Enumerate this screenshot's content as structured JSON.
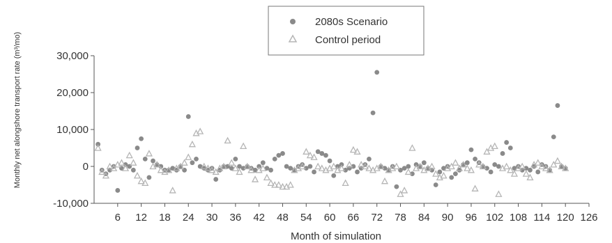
{
  "chart_data": {
    "type": "scatter",
    "title": "",
    "xlabel": "Month of simulation",
    "ylabel": "Monthly net alongshore transport rate (m³/mo)",
    "xlim": [
      0,
      126
    ],
    "ylim": [
      -10000,
      30000
    ],
    "x_ticks": [
      6,
      12,
      18,
      24,
      30,
      36,
      42,
      48,
      54,
      60,
      66,
      72,
      78,
      84,
      90,
      96,
      102,
      108,
      114,
      120,
      126
    ],
    "x_tick_labels": [
      "6",
      "12",
      "18",
      "24",
      "30",
      "36",
      "42",
      "48",
      "54",
      "60",
      "66",
      "72",
      "78",
      "84",
      "90",
      "96",
      "102",
      "108",
      "114",
      "120",
      "126"
    ],
    "y_ticks": [
      -10000,
      0,
      10000,
      20000,
      30000
    ],
    "y_tick_labels": [
      "-10,000",
      "0",
      "10,000",
      "20,000",
      "30,000"
    ],
    "grid": false,
    "legend_position": "top-center",
    "series": [
      {
        "name": "2080s Scenario",
        "marker": "circle",
        "color": "#8a8a8a",
        "points": [
          [
            1,
            6000
          ],
          [
            2,
            -1000
          ],
          [
            3,
            -2000
          ],
          [
            4,
            -1000
          ],
          [
            5,
            0
          ],
          [
            6,
            -6500
          ],
          [
            7,
            -500
          ],
          [
            8,
            500
          ],
          [
            9,
            0
          ],
          [
            10,
            -1000
          ],
          [
            11,
            5000
          ],
          [
            12,
            7500
          ],
          [
            13,
            2000
          ],
          [
            14,
            -3000
          ],
          [
            15,
            1500
          ],
          [
            16,
            500
          ],
          [
            17,
            0
          ],
          [
            18,
            -1000
          ],
          [
            19,
            -1000
          ],
          [
            20,
            -500
          ],
          [
            21,
            -1000
          ],
          [
            22,
            0
          ],
          [
            23,
            -1000
          ],
          [
            24,
            13500
          ],
          [
            25,
            1000
          ],
          [
            26,
            2000
          ],
          [
            27,
            0
          ],
          [
            28,
            -500
          ],
          [
            29,
            -1000
          ],
          [
            30,
            -500
          ],
          [
            31,
            -3500
          ],
          [
            32,
            -1000
          ],
          [
            33,
            0
          ],
          [
            34,
            0
          ],
          [
            35,
            -500
          ],
          [
            36,
            2000
          ],
          [
            37,
            0
          ],
          [
            38,
            -500
          ],
          [
            39,
            0
          ],
          [
            40,
            -500
          ],
          [
            41,
            -1000
          ],
          [
            42,
            0
          ],
          [
            43,
            1000
          ],
          [
            44,
            -500
          ],
          [
            45,
            -1000
          ],
          [
            46,
            2000
          ],
          [
            47,
            3000
          ],
          [
            48,
            3500
          ],
          [
            49,
            0
          ],
          [
            50,
            -500
          ],
          [
            51,
            -1000
          ],
          [
            52,
            0
          ],
          [
            53,
            500
          ],
          [
            54,
            -500
          ],
          [
            55,
            0
          ],
          [
            56,
            -1500
          ],
          [
            57,
            4000
          ],
          [
            58,
            3500
          ],
          [
            59,
            3000
          ],
          [
            60,
            1500
          ],
          [
            61,
            -2500
          ],
          [
            62,
            0
          ],
          [
            63,
            500
          ],
          [
            64,
            -1000
          ],
          [
            65,
            -500
          ],
          [
            66,
            0
          ],
          [
            67,
            -1500
          ],
          [
            68,
            -500
          ],
          [
            69,
            500
          ],
          [
            70,
            2000
          ],
          [
            71,
            14500
          ],
          [
            72,
            25500
          ],
          [
            73,
            0
          ],
          [
            74,
            -500
          ],
          [
            75,
            -1000
          ],
          [
            76,
            0
          ],
          [
            77,
            -5500
          ],
          [
            78,
            -1000
          ],
          [
            79,
            -500
          ],
          [
            80,
            0
          ],
          [
            81,
            -2000
          ],
          [
            82,
            500
          ],
          [
            83,
            0
          ],
          [
            84,
            1000
          ],
          [
            85,
            -500
          ],
          [
            86,
            -1000
          ],
          [
            87,
            -5000
          ],
          [
            88,
            -1500
          ],
          [
            89,
            -500
          ],
          [
            90,
            0
          ],
          [
            91,
            -3000
          ],
          [
            92,
            -2000
          ],
          [
            93,
            -1000
          ],
          [
            94,
            500
          ],
          [
            95,
            1000
          ],
          [
            96,
            4500
          ],
          [
            97,
            2000
          ],
          [
            98,
            1000
          ],
          [
            99,
            0
          ],
          [
            100,
            -500
          ],
          [
            101,
            -1500
          ],
          [
            102,
            500
          ],
          [
            103,
            0
          ],
          [
            104,
            3500
          ],
          [
            105,
            6500
          ],
          [
            106,
            5000
          ],
          [
            107,
            -500
          ],
          [
            108,
            0
          ],
          [
            109,
            -1000
          ],
          [
            110,
            -500
          ],
          [
            111,
            -1000
          ],
          [
            112,
            0
          ],
          [
            113,
            -1500
          ],
          [
            114,
            500
          ],
          [
            115,
            0
          ],
          [
            116,
            -1000
          ],
          [
            117,
            8000
          ],
          [
            118,
            16500
          ],
          [
            119,
            0
          ],
          [
            120,
            -500
          ]
        ]
      },
      {
        "name": "Control period",
        "marker": "triangle",
        "color": "#b5b5b5",
        "points": [
          [
            1,
            5000
          ],
          [
            2,
            -1500
          ],
          [
            3,
            -2500
          ],
          [
            4,
            0
          ],
          [
            5,
            -500
          ],
          [
            6,
            500
          ],
          [
            7,
            1000
          ],
          [
            8,
            -500
          ],
          [
            9,
            3000
          ],
          [
            10,
            1000
          ],
          [
            11,
            -2500
          ],
          [
            12,
            -4000
          ],
          [
            13,
            -4500
          ],
          [
            14,
            3500
          ],
          [
            15,
            0
          ],
          [
            16,
            500
          ],
          [
            17,
            -1000
          ],
          [
            18,
            -1500
          ],
          [
            19,
            -1000
          ],
          [
            20,
            -6500
          ],
          [
            21,
            -500
          ],
          [
            22,
            0
          ],
          [
            23,
            1000
          ],
          [
            24,
            2500
          ],
          [
            25,
            6000
          ],
          [
            26,
            9000
          ],
          [
            27,
            9500
          ],
          [
            28,
            0
          ],
          [
            29,
            -500
          ],
          [
            30,
            -1000
          ],
          [
            31,
            -1500
          ],
          [
            32,
            -500
          ],
          [
            33,
            0
          ],
          [
            34,
            7000
          ],
          [
            35,
            1000
          ],
          [
            36,
            -500
          ],
          [
            37,
            -1500
          ],
          [
            38,
            5500
          ],
          [
            39,
            0
          ],
          [
            40,
            -1000
          ],
          [
            41,
            -3500
          ],
          [
            42,
            -1000
          ],
          [
            43,
            -500
          ],
          [
            44,
            -3000
          ],
          [
            45,
            -4500
          ],
          [
            46,
            -5000
          ],
          [
            47,
            -5000
          ],
          [
            48,
            -5500
          ],
          [
            49,
            -5500
          ],
          [
            50,
            -5000
          ],
          [
            51,
            -1000
          ],
          [
            52,
            -500
          ],
          [
            53,
            0
          ],
          [
            54,
            4000
          ],
          [
            55,
            3000
          ],
          [
            56,
            2500
          ],
          [
            57,
            0
          ],
          [
            58,
            -500
          ],
          [
            59,
            -1000
          ],
          [
            60,
            -500
          ],
          [
            61,
            0
          ],
          [
            62,
            -1000
          ],
          [
            63,
            -500
          ],
          [
            64,
            -4500
          ],
          [
            65,
            500
          ],
          [
            66,
            4500
          ],
          [
            67,
            4000
          ],
          [
            68,
            500
          ],
          [
            69,
            0
          ],
          [
            70,
            -500
          ],
          [
            71,
            -1000
          ],
          [
            72,
            -500
          ],
          [
            73,
            0
          ],
          [
            74,
            -4000
          ],
          [
            75,
            -1000
          ],
          [
            76,
            -500
          ],
          [
            77,
            0
          ],
          [
            78,
            -7500
          ],
          [
            79,
            -6500
          ],
          [
            80,
            -1500
          ],
          [
            81,
            5000
          ],
          [
            82,
            -500
          ],
          [
            83,
            0
          ],
          [
            84,
            -1000
          ],
          [
            85,
            -500
          ],
          [
            86,
            0
          ],
          [
            87,
            -2000
          ],
          [
            88,
            -3000
          ],
          [
            89,
            -2500
          ],
          [
            90,
            -500
          ],
          [
            91,
            0
          ],
          [
            92,
            1000
          ],
          [
            93,
            -500
          ],
          [
            94,
            500
          ],
          [
            95,
            -500
          ],
          [
            96,
            -1000
          ],
          [
            97,
            -6000
          ],
          [
            98,
            500
          ],
          [
            99,
            0
          ],
          [
            100,
            4000
          ],
          [
            101,
            5000
          ],
          [
            102,
            5500
          ],
          [
            103,
            -7500
          ],
          [
            104,
            -500
          ],
          [
            105,
            0
          ],
          [
            106,
            -1000
          ],
          [
            107,
            -2000
          ],
          [
            108,
            -500
          ],
          [
            109,
            0
          ],
          [
            110,
            -2000
          ],
          [
            111,
            -3000
          ],
          [
            112,
            500
          ],
          [
            113,
            1000
          ],
          [
            114,
            0
          ],
          [
            115,
            -500
          ],
          [
            116,
            -1000
          ],
          [
            117,
            500
          ],
          [
            118,
            1500
          ],
          [
            119,
            0
          ],
          [
            120,
            -500
          ]
        ]
      }
    ]
  }
}
